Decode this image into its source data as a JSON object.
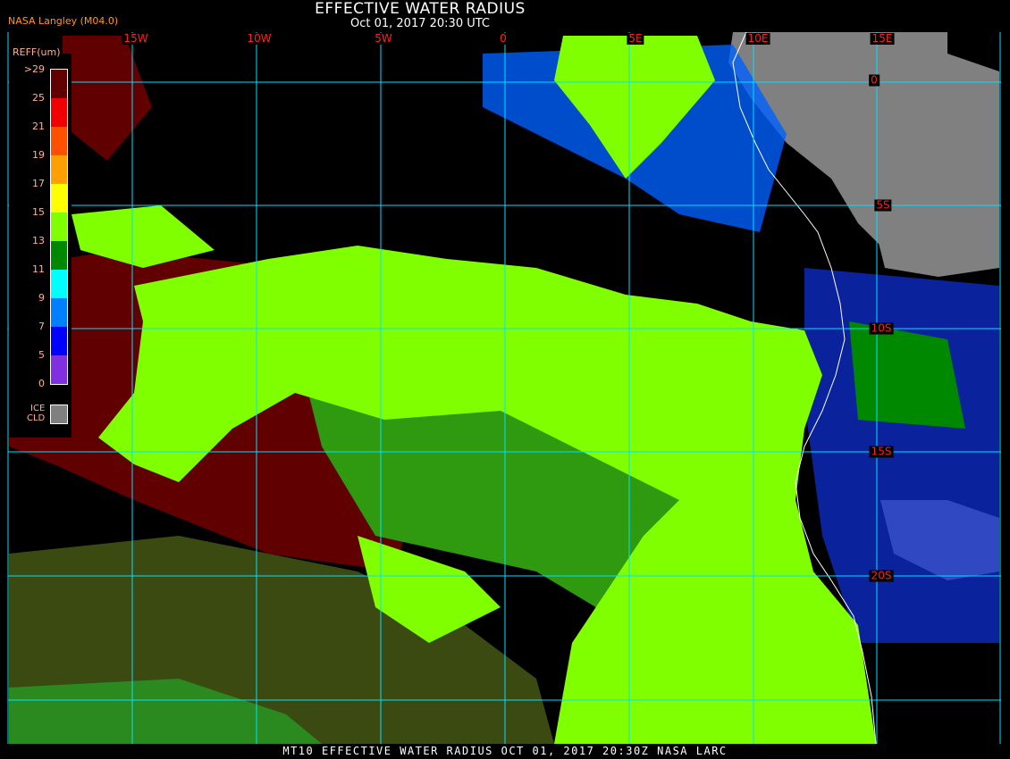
{
  "header": {
    "title": "EFFECTIVE WATER RADIUS",
    "subtitle": "Oct 01, 2017 20:30 UTC",
    "source": "NASA Langley (M04.0)"
  },
  "map": {
    "longitude_labels": [
      "15W",
      "10W",
      "5W",
      "0",
      "5E",
      "10E",
      "15E"
    ],
    "latitude_labels": [
      "0",
      "5S",
      "10S",
      "15S",
      "20S"
    ],
    "colors": {
      "background": "#000000",
      "grid": "#00e0ff",
      "coastline": "#ffffff",
      "ice_cloud": "#808080",
      "grid_labels": "#ff2020"
    }
  },
  "legend": {
    "title": "REFF(um)",
    "labels": [
      ">29",
      "25",
      "21",
      "19",
      "17",
      "15",
      "13",
      "11",
      "9",
      "7",
      "5",
      "0"
    ],
    "colors": [
      "#600000",
      "#f00000",
      "#ff5000",
      "#ffa000",
      "#ffff00",
      "#80ff00",
      "#008800",
      "#00ffff",
      "#0080ff",
      "#0000ff",
      "#8030e0"
    ],
    "ice_label_1": "ICE",
    "ice_label_2": "CLD"
  },
  "footer": {
    "text": "MT10  EFFECTIVE WATER RADIUS   OCT 01, 2017 20:30Z   NASA LARC"
  }
}
